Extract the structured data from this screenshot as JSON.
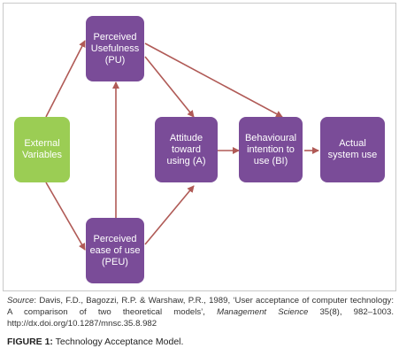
{
  "nodes": {
    "external": "External\nVariables",
    "pu": "Perceived\nUsefulness\n(PU)",
    "peu": "Perceived\nease of use\n(PEU)",
    "attitude": "Attitude\ntoward\nusing (A)",
    "intention": "Behavioural\nintention to\nuse (BI)",
    "actual": "Actual\nsystem use"
  },
  "colors": {
    "purple": "#7a4c98",
    "green": "#9bcd54",
    "arrow": "#b05a56"
  },
  "source": {
    "label": "Source",
    "text1": ": Davis, F.D., Bagozzi, R.P. & Warshaw, P.R., 1989, ‘User acceptance of computer technology: A comparison of two theoretical models’, ",
    "journal": "Management Science",
    "text2": " 35(8), 982–1003. http://dx.doi.org/10.1287/mnsc.35.8.982"
  },
  "caption": {
    "label": "FIGURE 1:",
    "text": " Technology Acceptance Model."
  }
}
